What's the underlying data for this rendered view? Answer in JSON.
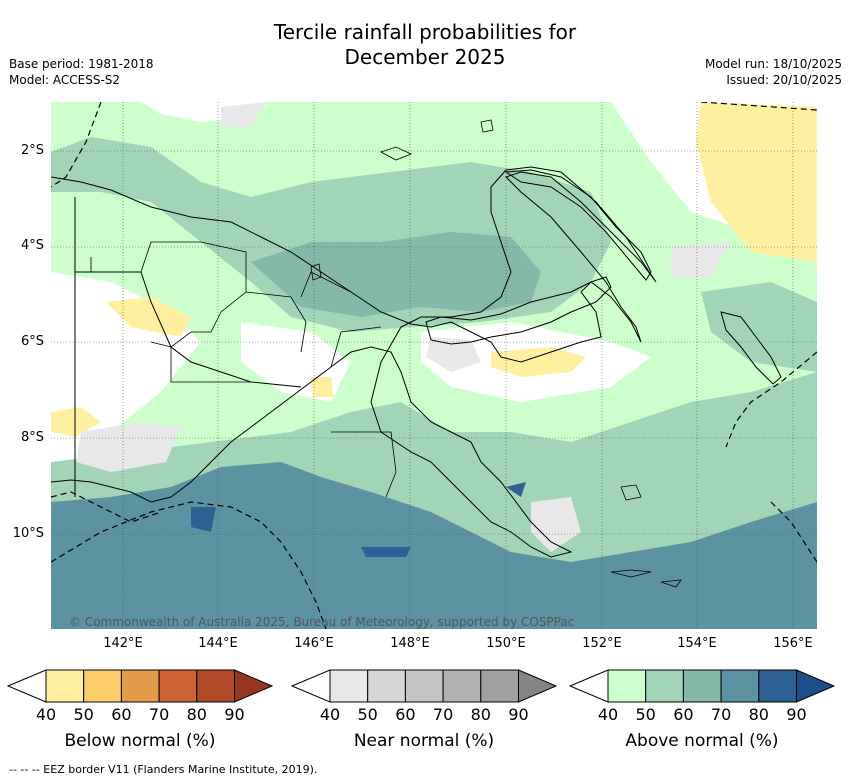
{
  "title": "Tercile rainfall probabilities for\nDecember 2025",
  "meta_left": {
    "base_period": "Base period: 1981-2018",
    "model": "Model: ACCESS-S2"
  },
  "meta_right": {
    "model_run": "Model run: 18/10/2025",
    "issued": "Issued: 20/10/2025"
  },
  "map": {
    "lat_labels": [
      "2°S",
      "4°S",
      "6°S",
      "8°S",
      "10°S"
    ],
    "lon_labels": [
      "142°E",
      "144°E",
      "146°E",
      "148°E",
      "150°E",
      "152°E",
      "154°E",
      "156°E"
    ],
    "attribution": "© Commonwealth of Australia 2025, Bureau of Meteorology, supported by COSPPac"
  },
  "colorbars": [
    {
      "caption": "Below normal (%)",
      "ticks": [
        "40",
        "50",
        "60",
        "70",
        "80",
        "90"
      ],
      "colors": [
        "#fff0a0",
        "#fdcd6a",
        "#e39a4a",
        "#cd6233",
        "#b04a2a",
        "#96361f"
      ]
    },
    {
      "caption": "Near normal (%)",
      "ticks": [
        "40",
        "50",
        "60",
        "70",
        "80",
        "90"
      ],
      "colors": [
        "#e8e8e8",
        "#d6d6d6",
        "#c4c4c4",
        "#b2b2b2",
        "#a0a0a0",
        "#858585"
      ]
    },
    {
      "caption": "Above normal (%)",
      "ticks": [
        "40",
        "50",
        "60",
        "70",
        "80",
        "90"
      ],
      "colors": [
        "#ccffcc",
        "#a2d5b8",
        "#84b8a8",
        "#5b93a2",
        "#2e6193",
        "#1c4f88"
      ]
    }
  ],
  "footnote": "-- -- -- EEZ border V11 (Flanders Marine Institute, 2019).",
  "colors": {
    "white_zone": "#ffffff",
    "land_border": "#000000",
    "grid": "#555555"
  }
}
